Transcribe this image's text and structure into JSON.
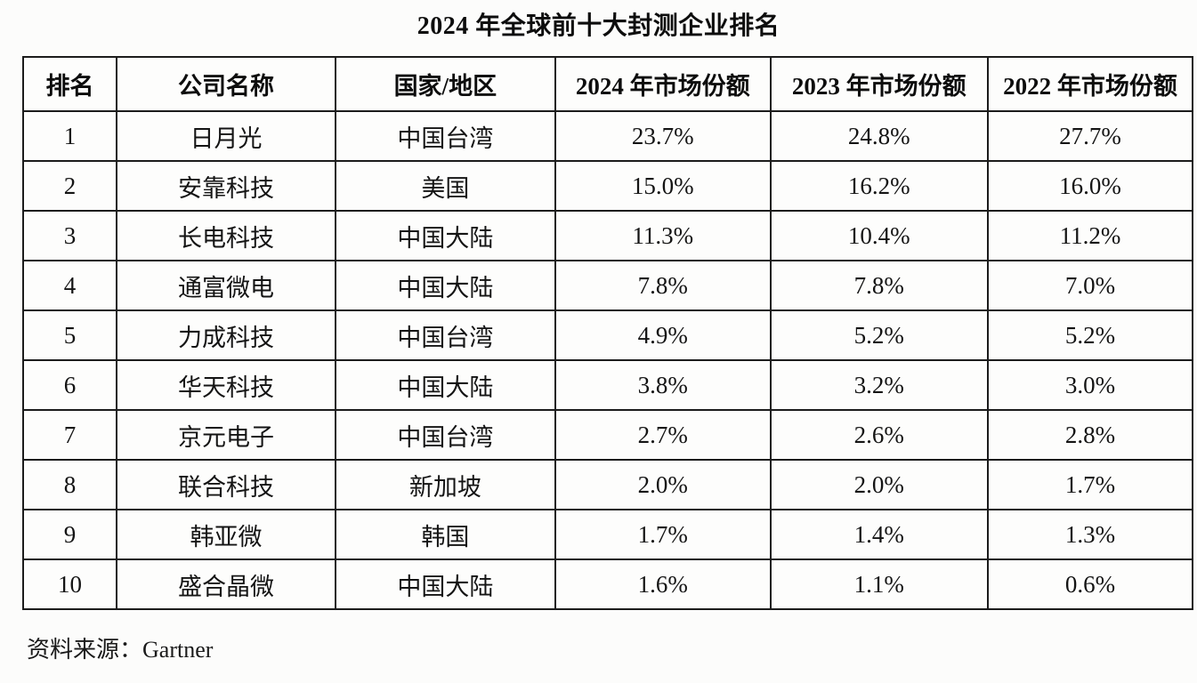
{
  "title": "2024 年全球前十大封测企业排名",
  "source": "资料来源：Gartner",
  "chart_data": {
    "type": "table",
    "title": "2024 年全球前十大封测企业排名",
    "columns": [
      "排名",
      "公司名称",
      "国家/地区",
      "2024 年市场份额",
      "2023 年市场份额",
      "2022 年市场份额"
    ],
    "rows": [
      [
        "1",
        "日月光",
        "中国台湾",
        "23.7%",
        "24.8%",
        "27.7%"
      ],
      [
        "2",
        "安靠科技",
        "美国",
        "15.0%",
        "16.2%",
        "16.0%"
      ],
      [
        "3",
        "长电科技",
        "中国大陆",
        "11.3%",
        "10.4%",
        "11.2%"
      ],
      [
        "4",
        "通富微电",
        "中国大陆",
        "7.8%",
        "7.8%",
        "7.0%"
      ],
      [
        "5",
        "力成科技",
        "中国台湾",
        "4.9%",
        "5.2%",
        "5.2%"
      ],
      [
        "6",
        "华天科技",
        "中国大陆",
        "3.8%",
        "3.2%",
        "3.0%"
      ],
      [
        "7",
        "京元电子",
        "中国台湾",
        "2.7%",
        "2.6%",
        "2.8%"
      ],
      [
        "8",
        "联合科技",
        "新加坡",
        "2.0%",
        "2.0%",
        "1.7%"
      ],
      [
        "9",
        "韩亚微",
        "韩国",
        "1.7%",
        "1.4%",
        "1.3%"
      ],
      [
        "10",
        "盛合晶微",
        "中国大陆",
        "1.6%",
        "1.1%",
        "0.6%"
      ]
    ],
    "source": "资料来源：Gartner",
    "layout": {
      "grid": true,
      "header_row": true
    }
  }
}
